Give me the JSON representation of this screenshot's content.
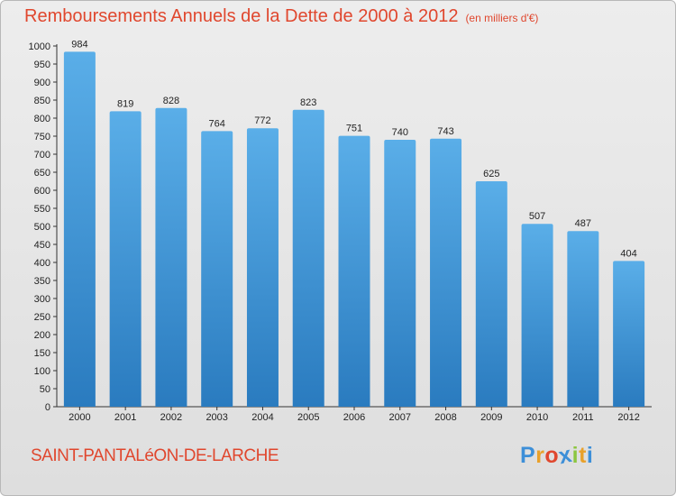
{
  "title": "Remboursements Annuels de la Dette de 2000 à 2012",
  "subtitle": "(en milliers d'€)",
  "commune": "SAINT-PANTALéON-DE-LARCHE",
  "logo": {
    "text": "Proxiti",
    "letters": [
      "P",
      "r",
      "o",
      "x",
      "i",
      "t",
      "i"
    ],
    "colors": [
      "#3d8fd8",
      "#e9a12a",
      "#e0472e",
      "#3d8fd8",
      "#8cc63f",
      "#e9a12a",
      "#3d8fd8"
    ]
  },
  "colors": {
    "accent": "#e0472e",
    "bar_top": "#5aaee8",
    "bar_bottom": "#2a7bbf"
  },
  "chart_data": {
    "type": "bar",
    "title": "Remboursements Annuels de la Dette de 2000 à 2012",
    "subtitle": "(en milliers d'€)",
    "categories": [
      "2000",
      "2001",
      "2002",
      "2003",
      "2004",
      "2005",
      "2006",
      "2007",
      "2008",
      "2009",
      "2010",
      "2011",
      "2012"
    ],
    "values": [
      984,
      819,
      828,
      764,
      772,
      823,
      751,
      740,
      743,
      625,
      507,
      487,
      404
    ],
    "ylim": [
      0,
      1000
    ],
    "ytick_step": 50,
    "grid": false,
    "xlabel": "",
    "ylabel": ""
  }
}
